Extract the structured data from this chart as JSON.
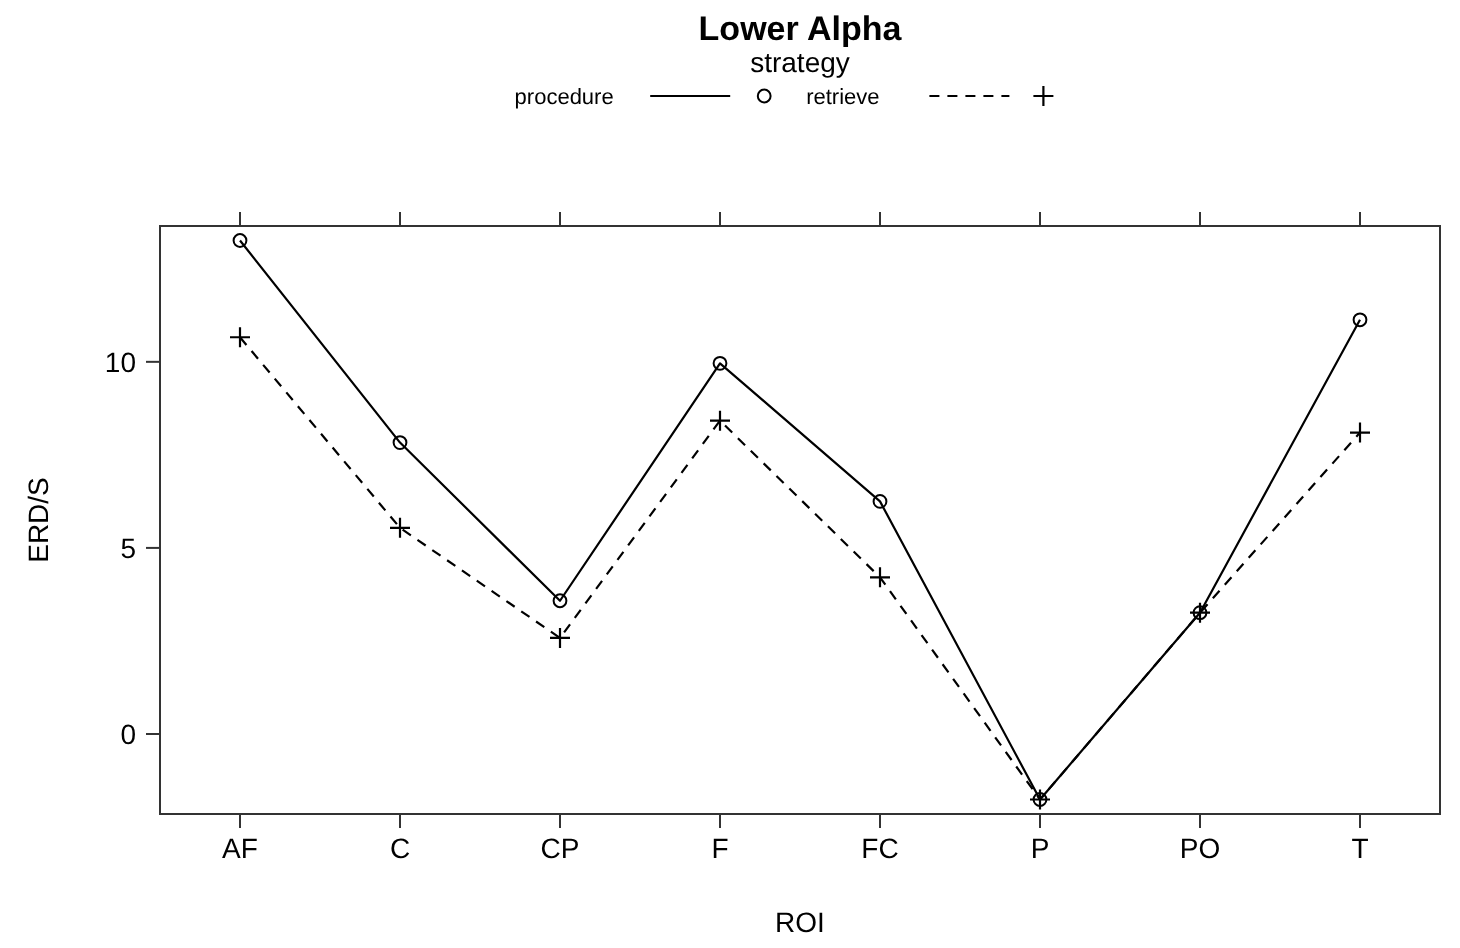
{
  "chart_data": {
    "type": "line",
    "title": "Lower Alpha",
    "xlabel": "ROI",
    "ylabel": "ERD/S",
    "legend_title": "strategy",
    "legend": "top",
    "categories": [
      "AF",
      "C",
      "CP",
      "F",
      "FC",
      "P",
      "PO",
      "T"
    ],
    "series": [
      {
        "name": "procedure",
        "color": "#000000",
        "marker": "circle",
        "line_style": "solid",
        "values": [
          13.26,
          7.83,
          3.58,
          9.96,
          6.25,
          -1.76,
          3.26,
          11.13
        ]
      },
      {
        "name": "retrieve",
        "color": "#000000",
        "marker": "cross",
        "line_style": "dashed",
        "values": [
          10.66,
          5.54,
          2.58,
          8.42,
          4.21,
          -1.76,
          3.26,
          8.1
        ]
      }
    ],
    "ylim": [
      -2.15,
      13.65
    ],
    "yticks": [
      0,
      5,
      10
    ],
    "grid": false
  }
}
